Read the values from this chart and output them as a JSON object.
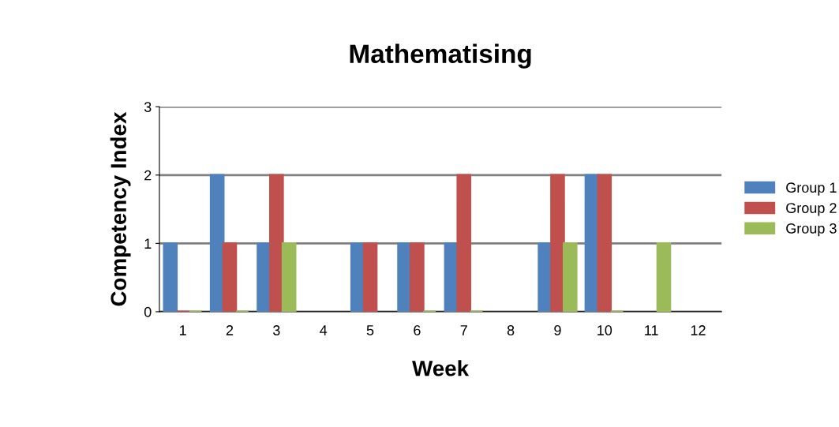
{
  "chart_data": {
    "type": "bar",
    "title": "Mathematising",
    "xlabel": "Week",
    "ylabel": "Competency Index",
    "categories": [
      "1",
      "2",
      "3",
      "4",
      "5",
      "6",
      "7",
      "8",
      "9",
      "10",
      "11",
      "12"
    ],
    "series": [
      {
        "name": "Group 1",
        "color": "#4f81bd",
        "values": [
          1,
          2,
          1,
          null,
          1,
          1,
          1,
          null,
          1,
          2,
          null,
          null
        ]
      },
      {
        "name": "Group 2",
        "color": "#c0504d",
        "values": [
          0,
          1,
          2,
          null,
          1,
          1,
          2,
          null,
          2,
          2,
          null,
          null
        ]
      },
      {
        "name": "Group 3",
        "color": "#9bbb59",
        "values": [
          0,
          0,
          1,
          null,
          null,
          0,
          0,
          null,
          1,
          0,
          1,
          null
        ]
      }
    ],
    "ylim": [
      0,
      3
    ],
    "yticks": [
      0,
      1,
      2,
      3
    ],
    "grid": "y",
    "legend": "right"
  }
}
